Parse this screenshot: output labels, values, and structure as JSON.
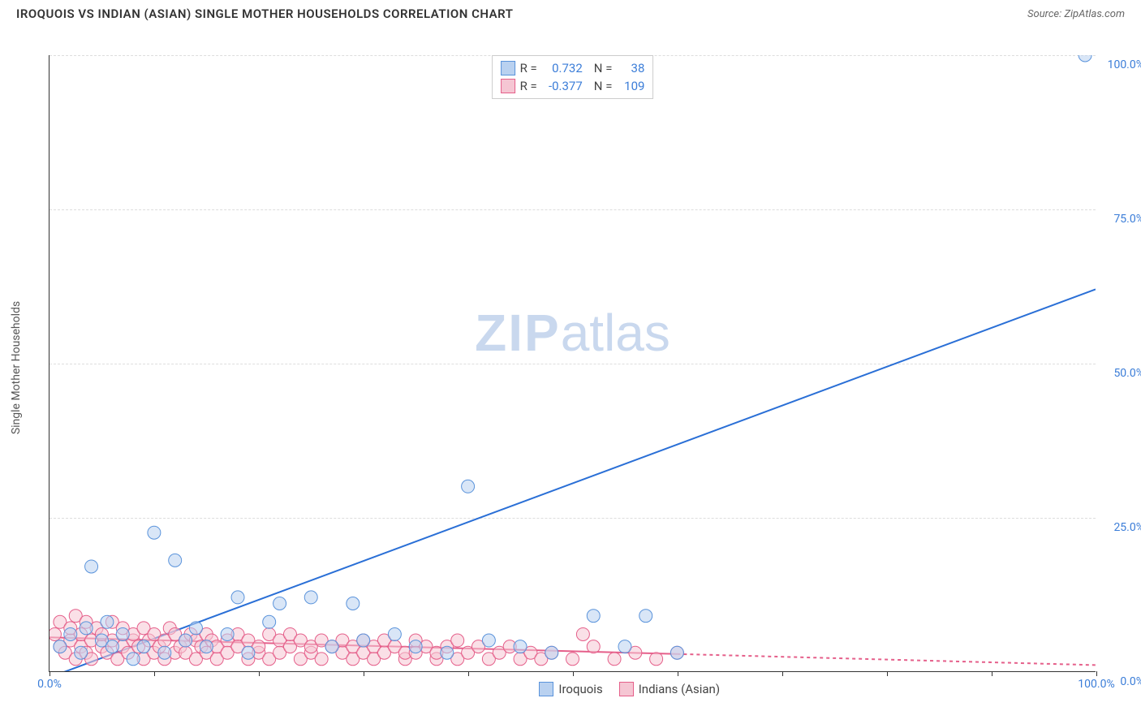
{
  "header": {
    "title": "IROQUOIS VS INDIAN (ASIAN) SINGLE MOTHER HOUSEHOLDS CORRELATION CHART",
    "source_prefix": "Source: ",
    "source_name": "ZipAtlas.com"
  },
  "watermark": {
    "zip": "ZIP",
    "atlas": "atlas"
  },
  "axes": {
    "y_label": "Single Mother Households",
    "xlim": [
      0,
      100
    ],
    "ylim": [
      0,
      100
    ],
    "y_ticks": [
      0,
      25,
      50,
      75,
      100
    ],
    "y_tick_labels": [
      "0.0%",
      "25.0%",
      "50.0%",
      "75.0%",
      "100.0%"
    ],
    "x_ticks": [
      0,
      10,
      20,
      30,
      40,
      50,
      60,
      70,
      80,
      90,
      100
    ],
    "x_tick_labels_shown": {
      "0": "0.0%",
      "100": "100.0%"
    },
    "grid_color": "#dddddd",
    "axis_color": "#333333",
    "tick_label_color": "#3b7dd8"
  },
  "legend_top": {
    "series": [
      {
        "swatch_fill": "#b9d1f0",
        "swatch_border": "#5a93db",
        "r_label": "R =",
        "r_value": "0.732",
        "n_label": "N =",
        "n_value": "38"
      },
      {
        "swatch_fill": "#f5c6d3",
        "swatch_border": "#e55f8a",
        "r_label": "R =",
        "r_value": "-0.377",
        "n_label": "N =",
        "n_value": "109"
      }
    ]
  },
  "legend_bottom": {
    "items": [
      {
        "swatch_fill": "#b9d1f0",
        "swatch_border": "#5a93db",
        "label": "Iroquois"
      },
      {
        "swatch_fill": "#f5c6d3",
        "swatch_border": "#e55f8a",
        "label": "Indians (Asian)"
      }
    ]
  },
  "chart": {
    "type": "scatter",
    "background": "#ffffff",
    "marker_radius": 8,
    "marker_opacity": 0.55,
    "series": [
      {
        "name": "Iroquois",
        "color_fill": "#b9d1f0",
        "color_stroke": "#5a93db",
        "regression": {
          "x1": 0,
          "y1": -1,
          "x2": 100,
          "y2": 62,
          "color": "#2a6fd6",
          "width": 2,
          "dash": "none",
          "solid_until_x": 100
        },
        "points": [
          [
            1,
            4
          ],
          [
            2,
            6
          ],
          [
            3,
            3
          ],
          [
            3.5,
            7
          ],
          [
            4,
            17
          ],
          [
            5,
            5
          ],
          [
            5.5,
            8
          ],
          [
            6,
            4
          ],
          [
            7,
            6
          ],
          [
            8,
            2
          ],
          [
            9,
            4
          ],
          [
            10,
            22.5
          ],
          [
            11,
            3
          ],
          [
            12,
            18
          ],
          [
            13,
            5
          ],
          [
            14,
            7
          ],
          [
            15,
            4
          ],
          [
            17,
            6
          ],
          [
            18,
            12
          ],
          [
            19,
            3
          ],
          [
            21,
            8
          ],
          [
            22,
            11
          ],
          [
            25,
            12
          ],
          [
            27,
            4
          ],
          [
            29,
            11
          ],
          [
            30,
            5
          ],
          [
            33,
            6
          ],
          [
            35,
            4
          ],
          [
            38,
            3
          ],
          [
            40,
            30
          ],
          [
            42,
            5
          ],
          [
            45,
            4
          ],
          [
            48,
            3
          ],
          [
            52,
            9
          ],
          [
            55,
            4
          ],
          [
            57,
            9
          ],
          [
            60,
            3
          ],
          [
            99,
            100
          ]
        ]
      },
      {
        "name": "Indians (Asian)",
        "color_fill": "#f5c6d3",
        "color_stroke": "#e55f8a",
        "regression": {
          "x1": 0,
          "y1": 5.5,
          "x2": 100,
          "y2": 1,
          "color": "#e55f8a",
          "width": 2,
          "dash": "4,4",
          "solid_until_x": 60
        },
        "points": [
          [
            0.5,
            6
          ],
          [
            1,
            4
          ],
          [
            1,
            8
          ],
          [
            1.5,
            3
          ],
          [
            2,
            5
          ],
          [
            2,
            7
          ],
          [
            2.5,
            2
          ],
          [
            2.5,
            9
          ],
          [
            3,
            4
          ],
          [
            3,
            6
          ],
          [
            3.5,
            3
          ],
          [
            3.5,
            8
          ],
          [
            4,
            5
          ],
          [
            4,
            2
          ],
          [
            4.5,
            7
          ],
          [
            5,
            4
          ],
          [
            5,
            6
          ],
          [
            5.5,
            3
          ],
          [
            6,
            5
          ],
          [
            6,
            8
          ],
          [
            6.5,
            2
          ],
          [
            7,
            4
          ],
          [
            7,
            7
          ],
          [
            7.5,
            3
          ],
          [
            8,
            5
          ],
          [
            8,
            6
          ],
          [
            8.5,
            4
          ],
          [
            9,
            2
          ],
          [
            9,
            7
          ],
          [
            9.5,
            5
          ],
          [
            10,
            3
          ],
          [
            10,
            6
          ],
          [
            10.5,
            4
          ],
          [
            11,
            5
          ],
          [
            11,
            2
          ],
          [
            11.5,
            7
          ],
          [
            12,
            3
          ],
          [
            12,
            6
          ],
          [
            12.5,
            4
          ],
          [
            13,
            5
          ],
          [
            13,
            3
          ],
          [
            13.5,
            6
          ],
          [
            14,
            2
          ],
          [
            14,
            5
          ],
          [
            14.5,
            4
          ],
          [
            15,
            3
          ],
          [
            15,
            6
          ],
          [
            15.5,
            5
          ],
          [
            16,
            2
          ],
          [
            16,
            4
          ],
          [
            17,
            5
          ],
          [
            17,
            3
          ],
          [
            18,
            6
          ],
          [
            18,
            4
          ],
          [
            19,
            2
          ],
          [
            19,
            5
          ],
          [
            20,
            3
          ],
          [
            20,
            4
          ],
          [
            21,
            6
          ],
          [
            21,
            2
          ],
          [
            22,
            5
          ],
          [
            22,
            3
          ],
          [
            23,
            4
          ],
          [
            23,
            6
          ],
          [
            24,
            2
          ],
          [
            24,
            5
          ],
          [
            25,
            3
          ],
          [
            25,
            4
          ],
          [
            26,
            5
          ],
          [
            26,
            2
          ],
          [
            27,
            4
          ],
          [
            28,
            3
          ],
          [
            28,
            5
          ],
          [
            29,
            2
          ],
          [
            29,
            4
          ],
          [
            30,
            3
          ],
          [
            30,
            5
          ],
          [
            31,
            4
          ],
          [
            31,
            2
          ],
          [
            32,
            3
          ],
          [
            32,
            5
          ],
          [
            33,
            4
          ],
          [
            34,
            2
          ],
          [
            34,
            3
          ],
          [
            35,
            5
          ],
          [
            35,
            3
          ],
          [
            36,
            4
          ],
          [
            37,
            2
          ],
          [
            37,
            3
          ],
          [
            38,
            4
          ],
          [
            39,
            5
          ],
          [
            39,
            2
          ],
          [
            40,
            3
          ],
          [
            41,
            4
          ],
          [
            42,
            2
          ],
          [
            43,
            3
          ],
          [
            44,
            4
          ],
          [
            45,
            2
          ],
          [
            46,
            3
          ],
          [
            47,
            2
          ],
          [
            48,
            3
          ],
          [
            50,
            2
          ],
          [
            51,
            6
          ],
          [
            52,
            4
          ],
          [
            54,
            2
          ],
          [
            56,
            3
          ],
          [
            58,
            2
          ],
          [
            60,
            3
          ]
        ]
      }
    ]
  }
}
